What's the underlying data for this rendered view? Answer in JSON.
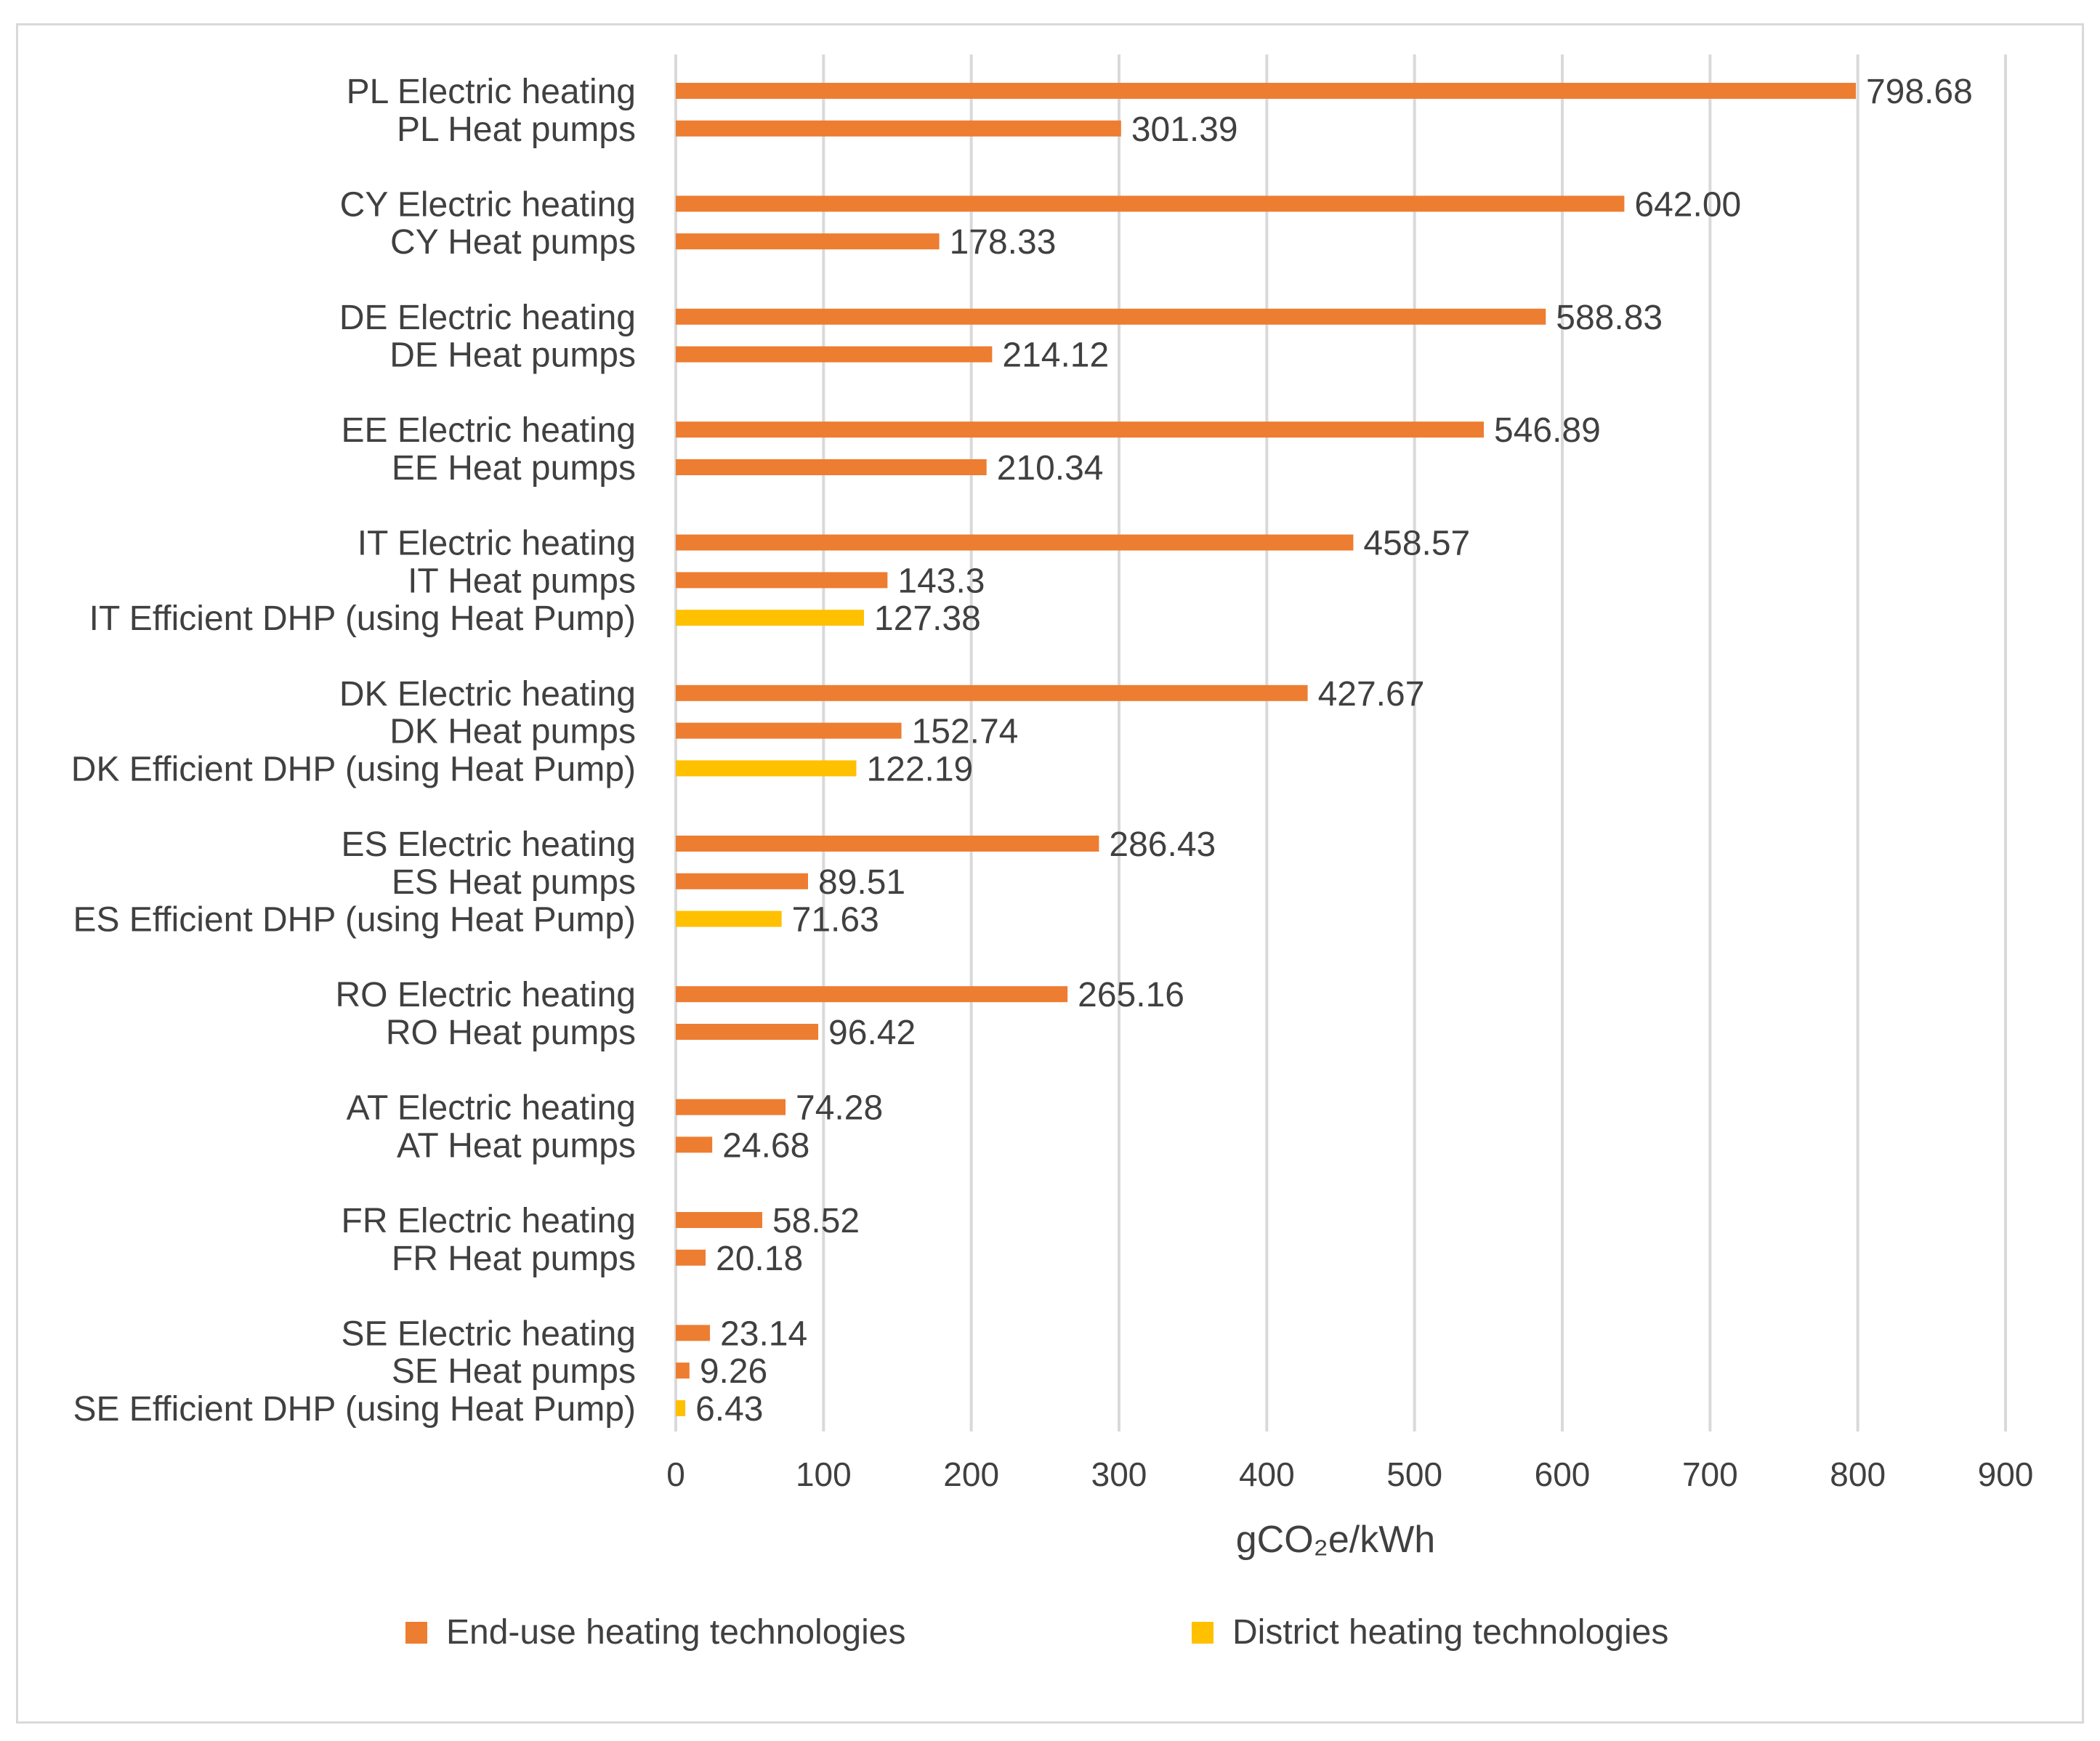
{
  "chart_data": {
    "type": "bar",
    "orientation": "horizontal",
    "xlabel": "gCO₂e/kWh",
    "xlim": [
      0,
      900
    ],
    "xticks": [
      0,
      100,
      200,
      300,
      400,
      500,
      600,
      700,
      800,
      900
    ],
    "grid": "vertical",
    "legend_position": "bottom",
    "series": [
      {
        "name": "End-use heating technologies",
        "color": "#ED7D31"
      },
      {
        "name": "District heating technologies",
        "color": "#FFC000"
      }
    ],
    "groups": [
      {
        "items": [
          {
            "label": "PL Electric heating",
            "value": 798.68,
            "value_label": "798.68",
            "series": 0
          },
          {
            "label": "PL Heat pumps",
            "value": 301.39,
            "value_label": "301.39",
            "series": 0
          }
        ]
      },
      {
        "items": [
          {
            "label": "CY Electric heating",
            "value": 642.0,
            "value_label": "642.00",
            "series": 0
          },
          {
            "label": "CY Heat pumps",
            "value": 178.33,
            "value_label": "178.33",
            "series": 0
          }
        ]
      },
      {
        "items": [
          {
            "label": "DE Electric heating",
            "value": 588.83,
            "value_label": "588.83",
            "series": 0
          },
          {
            "label": "DE Heat pumps",
            "value": 214.12,
            "value_label": "214.12",
            "series": 0
          }
        ]
      },
      {
        "items": [
          {
            "label": "EE Electric heating",
            "value": 546.89,
            "value_label": "546.89",
            "series": 0
          },
          {
            "label": "EE Heat pumps",
            "value": 210.34,
            "value_label": "210.34",
            "series": 0
          }
        ]
      },
      {
        "items": [
          {
            "label": "IT Electric heating",
            "value": 458.57,
            "value_label": "458.57",
            "series": 0
          },
          {
            "label": "IT Heat pumps",
            "value": 143.3,
            "value_label": "143.3",
            "series": 0
          },
          {
            "label": "IT Efficient DHP (using Heat Pump)",
            "value": 127.38,
            "value_label": "127.38",
            "series": 1
          }
        ]
      },
      {
        "items": [
          {
            "label": "DK Electric heating",
            "value": 427.67,
            "value_label": "427.67",
            "series": 0
          },
          {
            "label": "DK Heat pumps",
            "value": 152.74,
            "value_label": "152.74",
            "series": 0
          },
          {
            "label": "DK Efficient DHP (using Heat Pump)",
            "value": 122.19,
            "value_label": "122.19",
            "series": 1
          }
        ]
      },
      {
        "items": [
          {
            "label": "ES Electric heating",
            "value": 286.43,
            "value_label": "286.43",
            "series": 0
          },
          {
            "label": "ES Heat pumps",
            "value": 89.51,
            "value_label": "89.51",
            "series": 0
          },
          {
            "label": "ES Efficient DHP (using Heat Pump)",
            "value": 71.63,
            "value_label": "71.63",
            "series": 1
          }
        ]
      },
      {
        "items": [
          {
            "label": "RO Electric heating",
            "value": 265.16,
            "value_label": "265.16",
            "series": 0
          },
          {
            "label": "RO Heat pumps",
            "value": 96.42,
            "value_label": "96.42",
            "series": 0
          }
        ]
      },
      {
        "items": [
          {
            "label": "AT Electric heating",
            "value": 74.28,
            "value_label": "74.28",
            "series": 0
          },
          {
            "label": "AT Heat pumps",
            "value": 24.68,
            "value_label": "24.68",
            "series": 0
          }
        ]
      },
      {
        "items": [
          {
            "label": "FR Electric heating",
            "value": 58.52,
            "value_label": "58.52",
            "series": 0
          },
          {
            "label": "FR Heat pumps",
            "value": 20.18,
            "value_label": "20.18",
            "series": 0
          }
        ]
      },
      {
        "items": [
          {
            "label": "SE Electric heating",
            "value": 23.14,
            "value_label": "23.14",
            "series": 0
          },
          {
            "label": "SE Heat pumps",
            "value": 9.26,
            "value_label": "9.26",
            "series": 0
          },
          {
            "label": "SE Efficient DHP (using Heat Pump)",
            "value": 6.43,
            "value_label": "6.43",
            "series": 1
          }
        ]
      }
    ]
  }
}
